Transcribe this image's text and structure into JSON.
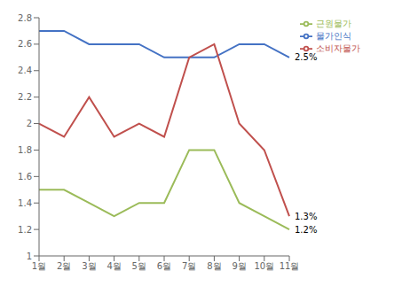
{
  "chart_data": {
    "type": "line",
    "categories": [
      "1월",
      "2월",
      "3월",
      "4월",
      "5월",
      "6월",
      "7월",
      "8월",
      "9월",
      "10월",
      "11월"
    ],
    "series": [
      {
        "name": "물가인식",
        "color": "#4472C4",
        "values": [
          2.7,
          2.7,
          2.6,
          2.6,
          2.6,
          2.5,
          2.5,
          2.5,
          2.6,
          2.6,
          2.5
        ]
      },
      {
        "name": "소비자물가",
        "color": "#C0504D",
        "values": [
          2.0,
          1.9,
          2.2,
          1.9,
          2.0,
          1.9,
          2.5,
          2.6,
          2.0,
          1.8,
          1.3
        ]
      },
      {
        "name": "근원물가",
        "color": "#9BBB59",
        "values": [
          1.5,
          1.5,
          1.4,
          1.3,
          1.4,
          1.4,
          1.8,
          1.8,
          1.4,
          1.3,
          1.2
        ]
      }
    ],
    "annotations": [
      {
        "text": "2.5%",
        "series": "물가인식"
      },
      {
        "text": "1.3%",
        "series": "소비자물가"
      },
      {
        "text": "1.2%",
        "series": "근원물가"
      }
    ],
    "ylim": [
      1.0,
      2.8
    ],
    "yticks": [
      1,
      1.2,
      1.4,
      1.6,
      1.8,
      2,
      2.2,
      2.4,
      2.6,
      2.8
    ],
    "grid": false,
    "legend": "right"
  }
}
